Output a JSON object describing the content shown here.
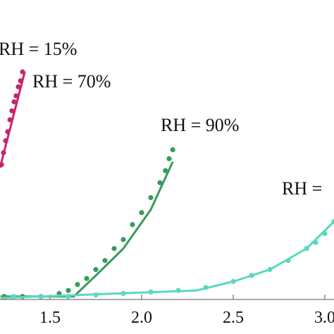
{
  "chart_data": {
    "type": "scatter",
    "annotations": [
      "RH = 15%",
      "RH = 70%",
      "RH = 90%",
      "RH ="
    ],
    "xlim": [
      1.227,
      3.05
    ],
    "ylim": [
      0,
      1
    ],
    "xticks": [
      1.5,
      {
        "value": 2,
        "label": "2.0"
      },
      2.5,
      {
        "value": 3,
        "label": "3.0"
      }
    ],
    "series": [
      {
        "color": "#c8246e",
        "x": [
          1.235,
          1.246,
          1.258,
          1.269,
          1.281,
          1.292,
          1.304,
          1.315,
          1.327,
          1.339,
          1.35
        ],
        "values": [
          0.45,
          0.49,
          0.53,
          0.56,
          0.6,
          0.63,
          0.66,
          0.68,
          0.71,
          0.73,
          0.76
        ],
        "fit_x": [
          1.227,
          1.362
        ],
        "fit_values": [
          0.44,
          0.76
        ]
      },
      {
        "color": "#3a9a5a",
        "x": [
          1.25,
          1.35,
          1.45,
          1.55,
          1.6,
          1.65,
          1.7,
          1.75,
          1.8,
          1.85,
          1.9,
          1.95,
          2.0,
          2.05,
          2.1,
          2.13,
          2.15,
          2.17
        ],
        "values": [
          0.01,
          0.01,
          0.01,
          0.02,
          0.03,
          0.05,
          0.07,
          0.1,
          0.13,
          0.17,
          0.2,
          0.25,
          0.29,
          0.34,
          0.39,
          0.43,
          0.47,
          0.5
        ],
        "fit_x": [
          1.23,
          1.63,
          1.75,
          1.9,
          2.05,
          2.17
        ],
        "fit_values": [
          0.01,
          0.01,
          0.08,
          0.17,
          0.3,
          0.46
        ]
      },
      {
        "color": "#5ad8c0",
        "x": [
          1.3,
          1.45,
          1.6,
          1.75,
          1.9,
          2.05,
          2.2,
          2.35,
          2.5,
          2.6,
          2.7,
          2.8,
          2.9,
          2.95,
          3.0,
          3.05
        ],
        "values": [
          0.01,
          0.01,
          0.01,
          0.015,
          0.02,
          0.025,
          0.03,
          0.04,
          0.06,
          0.08,
          0.1,
          0.13,
          0.17,
          0.19,
          0.22,
          0.26
        ],
        "fit_x": [
          1.23,
          2.3,
          2.5,
          2.7,
          2.9,
          3.05
        ],
        "fit_values": [
          0.005,
          0.03,
          0.06,
          0.1,
          0.17,
          0.26
        ]
      }
    ]
  }
}
